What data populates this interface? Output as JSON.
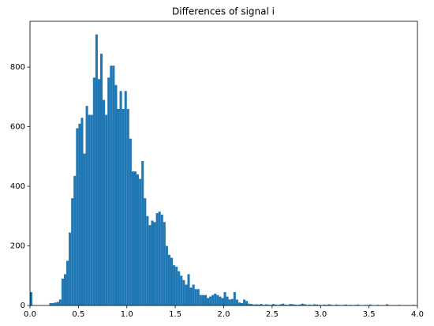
{
  "chart_data": {
    "type": "histogram",
    "title": "Differences of signal i",
    "color": "#1f77b4",
    "bins": [
      0,
      0.025,
      0.05,
      0.075,
      0.1,
      0.125,
      0.15,
      0.175,
      0.2,
      0.225,
      0.25,
      0.275,
      0.3,
      0.325,
      0.35,
      0.375,
      0.4,
      0.425,
      0.45,
      0.475,
      0.5,
      0.525,
      0.55,
      0.575,
      0.6,
      0.625,
      0.65,
      0.675,
      0.7,
      0.725,
      0.75,
      0.775,
      0.8,
      0.825,
      0.85,
      0.875,
      0.9,
      0.925,
      0.95,
      0.975,
      1,
      1.025,
      1.05,
      1.075,
      1.1,
      1.125,
      1.15,
      1.175,
      1.2,
      1.225,
      1.25,
      1.275,
      1.3,
      1.325,
      1.35,
      1.375,
      1.4,
      1.425,
      1.45,
      1.475,
      1.5,
      1.525,
      1.55,
      1.575,
      1.6,
      1.625,
      1.65,
      1.675,
      1.7,
      1.725,
      1.75,
      1.775,
      1.8,
      1.825,
      1.85,
      1.875,
      1.9,
      1.925,
      1.95,
      1.975,
      2,
      2.025,
      2.05,
      2.075,
      2.1,
      2.125,
      2.15,
      2.175,
      2.2,
      2.225,
      2.25,
      2.275,
      2.3,
      2.325,
      2.35,
      2.375,
      2.4,
      2.425,
      2.45,
      2.475,
      2.5,
      2.525,
      2.55,
      2.575,
      2.6,
      2.625,
      2.65,
      2.675,
      2.7,
      2.725,
      2.75,
      2.775,
      2.8,
      2.825,
      2.85,
      2.875,
      2.9,
      2.925,
      2.95,
      2.975,
      3,
      3.025,
      3.05,
      3.075,
      3.1,
      3.125,
      3.15,
      3.175,
      3.2,
      3.225,
      3.25,
      3.275,
      3.3,
      3.325,
      3.35,
      3.375,
      3.4,
      3.425,
      3.45,
      3.475,
      3.5,
      3.525,
      3.55,
      3.575,
      3.6,
      3.625,
      3.65,
      3.675,
      3.7,
      3.725,
      3.75,
      3.775,
      3.8,
      3.825,
      3.85,
      3.875,
      3.9,
      3.925,
      3.95,
      3.975,
      4
    ],
    "counts": [
      45,
      0,
      0,
      0,
      0,
      0,
      0,
      0,
      8,
      8,
      10,
      12,
      20,
      90,
      105,
      150,
      245,
      360,
      435,
      595,
      610,
      630,
      510,
      670,
      640,
      640,
      765,
      910,
      760,
      845,
      690,
      640,
      765,
      805,
      805,
      740,
      660,
      720,
      660,
      720,
      660,
      560,
      450,
      450,
      440,
      425,
      485,
      360,
      300,
      270,
      285,
      280,
      310,
      315,
      305,
      280,
      200,
      170,
      160,
      135,
      130,
      115,
      100,
      85,
      70,
      105,
      60,
      70,
      55,
      55,
      35,
      35,
      35,
      25,
      30,
      35,
      40,
      35,
      30,
      25,
      45,
      30,
      20,
      22,
      45,
      20,
      10,
      8,
      20,
      15,
      6,
      5,
      3,
      4,
      3,
      5,
      2,
      4,
      3,
      2,
      5,
      3,
      2,
      4,
      6,
      3,
      2,
      5,
      4,
      3,
      2,
      3,
      6,
      4,
      2,
      3,
      2,
      4,
      3,
      2,
      1,
      3,
      2,
      4,
      2,
      1,
      3,
      2,
      1,
      2,
      3,
      1,
      2,
      1,
      2,
      3,
      1,
      0,
      2,
      1,
      3,
      1,
      0,
      2,
      1,
      0,
      1,
      4,
      0,
      1,
      0,
      1,
      2,
      0,
      1,
      0,
      1,
      0,
      2,
      0
    ],
    "xlim": [
      0,
      4
    ],
    "ylim": [
      0,
      954
    ],
    "xticks": [
      {
        "value": 0,
        "label": "0.0"
      },
      0.5,
      {
        "value": 1,
        "label": "1.0"
      },
      1.5,
      {
        "value": 2,
        "label": "2.0"
      },
      2.5,
      {
        "value": 3,
        "label": "3.0"
      },
      3.5,
      {
        "value": 4,
        "label": "4.0"
      }
    ],
    "yticks": [
      0,
      200,
      400,
      600,
      800
    ]
  }
}
